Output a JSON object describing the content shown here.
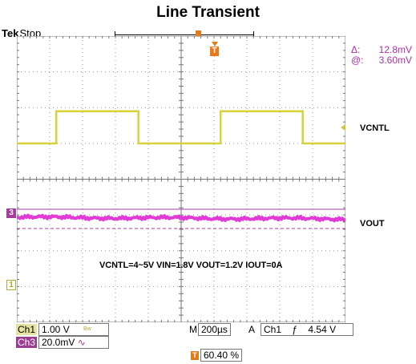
{
  "title": "Line Transient",
  "header": {
    "brand": "Tek",
    "state": "Stop"
  },
  "cursor_readout": {
    "delta_label": "Δ:",
    "delta_value": "12.8mV",
    "at_label": "@:",
    "at_value": "3.60mV"
  },
  "trigger_marker": "T",
  "channel_labels": {
    "vcntl": "VCNTL",
    "vout": "VOUT"
  },
  "conditions_note": "VCNTL=4~5V  VIN=1.8V  VOUT=1.2V  IOUT=0A",
  "ground_markers": {
    "ch3": "3",
    "ch1": "1"
  },
  "status": {
    "ch1_label": "Ch1",
    "ch1_scale": "1.00 V",
    "ch1_bw": "Bw",
    "ch3_label": "Ch3",
    "ch3_scale": "20.0mV",
    "ch3_coupling": "∿",
    "timebase_label": "M",
    "timebase_value": "200µs",
    "trigger_mode": "A",
    "trigger_source": "Ch1",
    "trigger_slope": "ƒ",
    "trigger_level": "4.54 V",
    "trigger_position": "60.40 %"
  },
  "colors": {
    "ch1": "#d6d33a",
    "ch3": "#e23ad6",
    "cursor": "#a83aa0",
    "trigger": "#e57c1c",
    "grid": "#9a9a9a"
  },
  "waveform": {
    "vcntl_levels_div": [
      0.0,
      1.0
    ],
    "vcntl_transitions_div": [
      1.8,
      5.9,
      9.2,
      13.3
    ],
    "vout_offset_div": 0.0
  }
}
